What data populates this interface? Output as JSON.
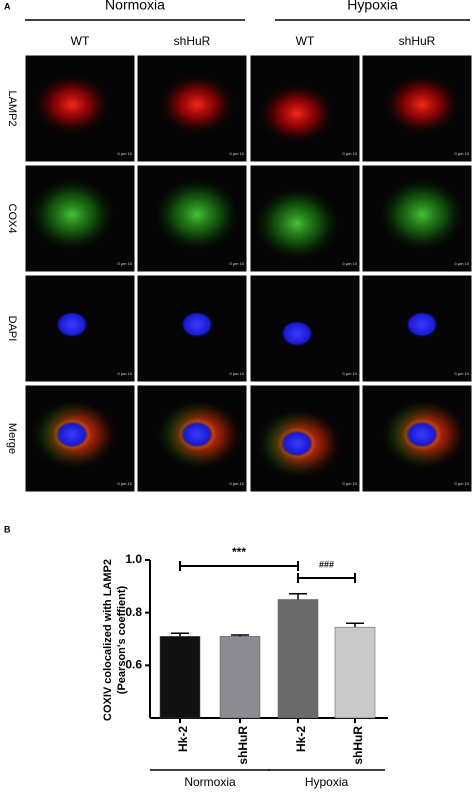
{
  "panel_a": {
    "label": "A",
    "groups": [
      "Normoxia",
      "Hypoxia"
    ],
    "columns": [
      "WT",
      "shHuR",
      "WT",
      "shHuR"
    ],
    "rows": [
      "LAMP2",
      "COX4",
      "DAPI",
      "Merge"
    ],
    "scale_bar": "0 µm 10"
  },
  "chart_data": {
    "type": "bar",
    "panel_label": "B",
    "ylabel": [
      "COXIV colocalized with LAMP2",
      "(Pearson's coeffient)"
    ],
    "categories": [
      "Hk-2",
      "shHuR",
      "Hk-2",
      "shHuR"
    ],
    "groups": [
      "Normoxia",
      "Hypoxia"
    ],
    "values": [
      0.71,
      0.71,
      0.85,
      0.745
    ],
    "errors": [
      0.012,
      0.005,
      0.022,
      0.015
    ],
    "colors": [
      "#111111",
      "#8c8b91",
      "#6a6a6a",
      "#c9c9c9"
    ],
    "ylim": [
      0.4,
      1.0
    ],
    "yticks": [
      0.6,
      0.8,
      {
        "value": 1.0,
        "label": "1.0"
      }
    ],
    "annotations": [
      "***",
      "###"
    ]
  }
}
